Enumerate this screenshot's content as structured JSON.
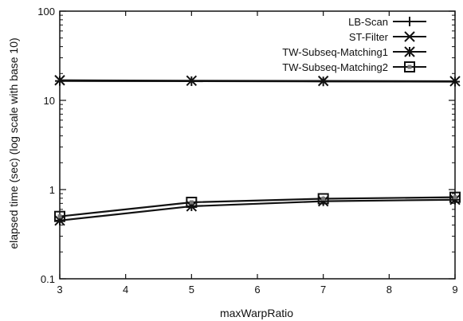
{
  "chart_data": {
    "type": "line",
    "xlabel": "maxWarpRatio",
    "ylabel": "elapsed time (sec) (log scale with base 10)",
    "x": [
      3,
      5,
      7,
      9
    ],
    "xlim": [
      3,
      9
    ],
    "xticks": [
      3,
      4,
      5,
      6,
      7,
      8,
      9
    ],
    "ylim": [
      0.1,
      100
    ],
    "yscale": "log",
    "yticks": [
      0.1,
      1,
      10,
      100
    ],
    "ytick_labels": [
      "0.1",
      "1",
      "10",
      "100"
    ],
    "grid": false,
    "legend_position": "top-right",
    "series": [
      {
        "name": "LB-Scan",
        "marker": "plus",
        "values": [
          16.5,
          16.4,
          16.3,
          16.2
        ]
      },
      {
        "name": "ST-Filter",
        "marker": "x",
        "values": [
          16.8,
          16.6,
          16.5,
          16.4
        ]
      },
      {
        "name": "TW-Subseq-Matching1",
        "marker": "star",
        "values": [
          0.45,
          0.65,
          0.74,
          0.77
        ]
      },
      {
        "name": "TW-Subseq-Matching2",
        "marker": "square",
        "values": [
          0.5,
          0.72,
          0.79,
          0.82
        ]
      }
    ]
  }
}
